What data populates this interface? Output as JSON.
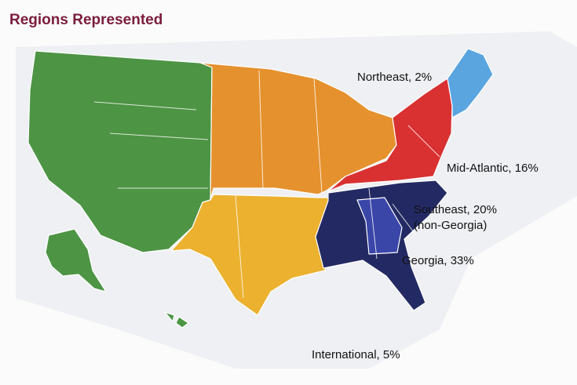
{
  "title": "Regions Represented",
  "regions": [
    {
      "color": "#4d9444"
    },
    {
      "color": "#e5912e"
    },
    {
      "color": "#ebb12f"
    },
    {
      "color": "#d93131",
      "label": "Mid-Atlantic, 16%"
    },
    {
      "color": "#5aa5e0",
      "label": "Northeast, 2%"
    },
    {
      "color": "#232a63",
      "label": "Southeast, 20%",
      "note": "(non-Georgia)"
    },
    {
      "color": "#3a46a8",
      "label": "Georgia, 33%"
    }
  ],
  "international_label": "International, 5%"
}
